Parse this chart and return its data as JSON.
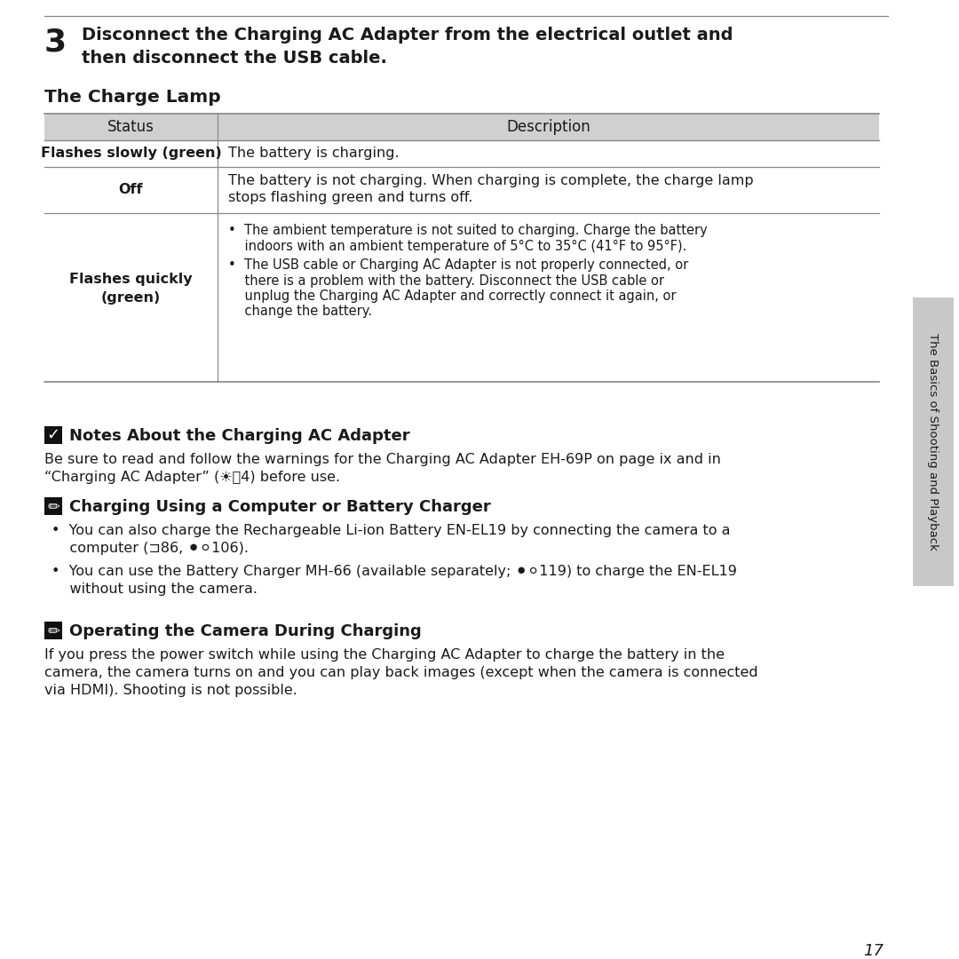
{
  "bg_color": "#ffffff",
  "text_color": "#1a1a1a",
  "page_number": "17",
  "step3_number": "3",
  "step3_line1": "Disconnect the Charging AC Adapter from the electrical outlet and",
  "step3_line2": "then disconnect the USB cable.",
  "section_title": "The Charge Lamp",
  "table_header_bg": "#d0d0d0",
  "table_line_color": "#888888",
  "table_col1_header": "Status",
  "table_col2_header": "Description",
  "row1_status": "Flashes slowly (green)",
  "row1_desc": "The battery is charging.",
  "row2_status": "Off",
  "row2_desc_line1": "The battery is not charging. When charging is complete, the charge lamp",
  "row2_desc_line2": "stops flashing green and turns off.",
  "row3_status_line1": "Flashes quickly",
  "row3_status_line2": "(green)",
  "row3_bullet1_line1": "•  The ambient temperature is not suited to charging. Charge the battery",
  "row3_bullet1_line2": "    indoors with an ambient temperature of 5°C to 35°C (41°F to 95°F).",
  "row3_bullet2_line1": "•  The USB cable or Charging AC Adapter is not properly connected, or",
  "row3_bullet2_line2": "    there is a problem with the battery. Disconnect the USB cable or",
  "row3_bullet2_line3": "    unplug the Charging AC Adapter and correctly connect it again, or",
  "row3_bullet2_line4": "    change the battery.",
  "note1_title": "Notes About the Charging AC Adapter",
  "note1_body_line1": "Be sure to read and follow the warnings for the Charging AC Adapter EH-69P on page ix and in",
  "note1_body_line2": "“Charging AC Adapter” (☀⁲4) before use.",
  "note2_title": "Charging Using a Computer or Battery Charger",
  "note2_b1_line1": "•  You can also charge the Rechargeable Li-ion Battery EN-EL19 by connecting the camera to a",
  "note2_b1_line2": "    computer (⊐86, ⚫⚪106).",
  "note2_b2_line1": "•  You can use the Battery Charger MH-66 (available separately; ⚫⚪119) to charge the EN-EL19",
  "note2_b2_line2": "    without using the camera.",
  "note3_title": "Operating the Camera During Charging",
  "note3_body_line1": "If you press the power switch while using the Charging AC Adapter to charge the battery in the",
  "note3_body_line2": "camera, the camera turns on and you can play back images (except when the camera is connected",
  "note3_body_line3": "via HDMI). Shooting is not possible.",
  "sidebar_text": "The Basics of Shooting and Playback",
  "sidebar_bg": "#c8c8c8"
}
